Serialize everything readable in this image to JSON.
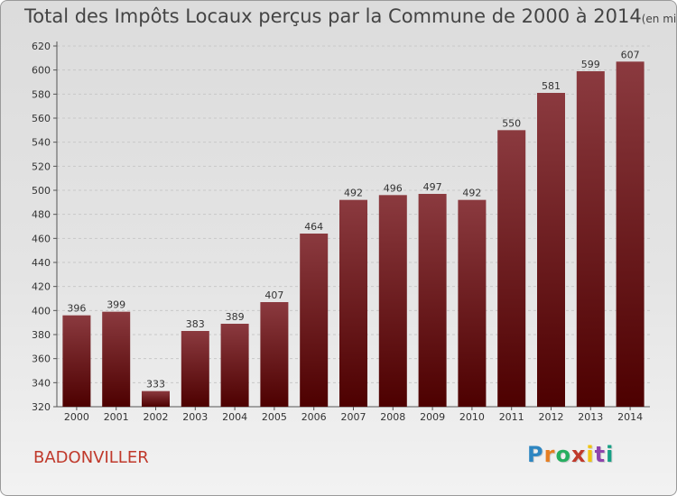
{
  "chart_data": {
    "type": "bar",
    "title": "Total des Impôts Locaux perçus par la Commune de 2000 à 2014",
    "unit_note": "(en milliers d'€)",
    "categories": [
      "2000",
      "2001",
      "2002",
      "2003",
      "2004",
      "2005",
      "2006",
      "2007",
      "2008",
      "2009",
      "2010",
      "2011",
      "2012",
      "2013",
      "2014"
    ],
    "values": [
      396,
      399,
      333,
      383,
      389,
      407,
      464,
      492,
      496,
      497,
      492,
      550,
      581,
      599,
      607
    ],
    "yticks": [
      320,
      340,
      360,
      380,
      400,
      420,
      440,
      460,
      480,
      500,
      520,
      540,
      560,
      580,
      600,
      620
    ],
    "ylim": [
      320,
      620
    ],
    "xlabel": "",
    "ylabel": "",
    "grid": true,
    "bar_color_top": "#8b3a3f",
    "bar_color_bottom": "#4d0000"
  },
  "footer": {
    "commune": "BADONVILLER",
    "logo_letters": [
      "P",
      "r",
      "o",
      "x",
      "i",
      "t",
      "i"
    ],
    "logo_colors": [
      "#2e86c1",
      "#e67e22",
      "#27ae60",
      "#c0392b",
      "#f1c40f",
      "#8e44ad",
      "#16a085"
    ]
  }
}
